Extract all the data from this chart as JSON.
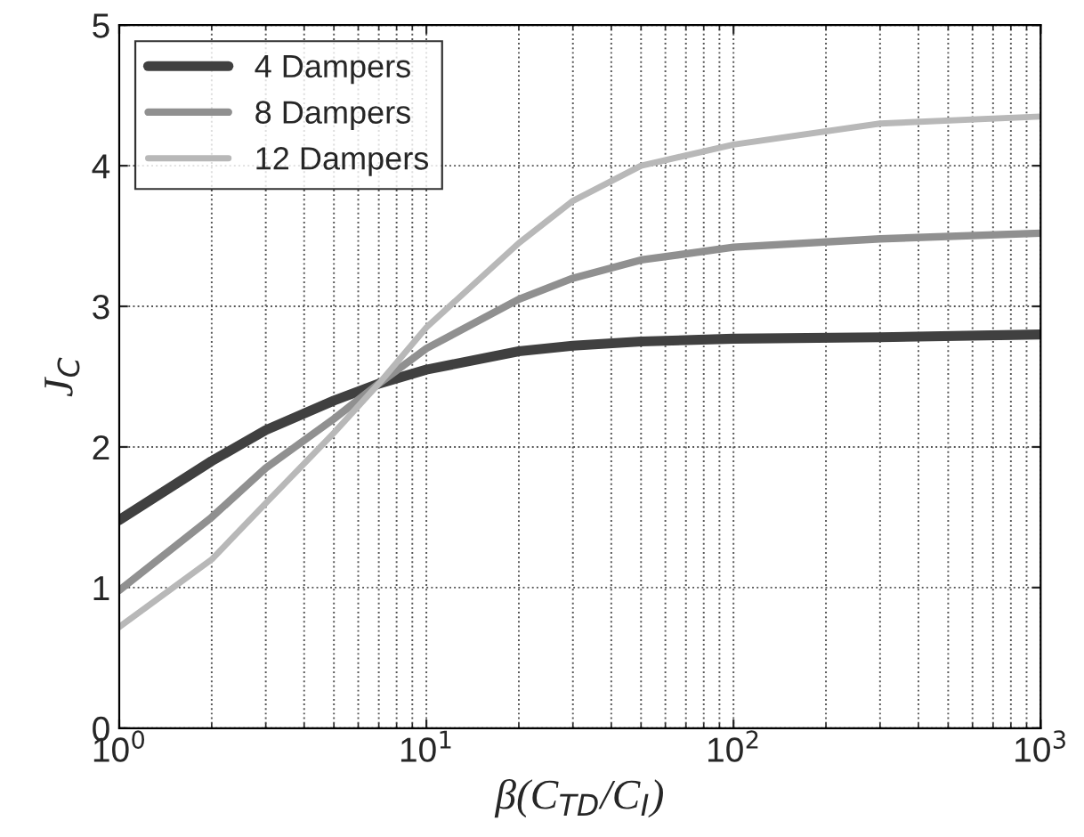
{
  "chart_data": {
    "type": "line",
    "xlabel": "β(C$_{TD}$/C$_{I}$)",
    "ylabel": "J$_{C}$",
    "log": "x",
    "x": [
      1,
      2,
      3,
      5,
      7,
      10,
      20,
      30,
      50,
      100,
      300,
      1000
    ],
    "series": [
      {
        "name": "4 Dampers",
        "color": "#404040",
        "values": [
          1.48,
          1.9,
          2.12,
          2.33,
          2.45,
          2.55,
          2.68,
          2.72,
          2.75,
          2.77,
          2.78,
          2.8
        ]
      },
      {
        "name": "8 Dampers",
        "color": "#909090",
        "values": [
          0.98,
          1.5,
          1.85,
          2.2,
          2.45,
          2.7,
          3.05,
          3.2,
          3.33,
          3.42,
          3.48,
          3.52
        ]
      },
      {
        "name": "12 Dampers",
        "color": "#b8b8b8",
        "values": [
          0.72,
          1.2,
          1.6,
          2.1,
          2.45,
          2.85,
          3.45,
          3.75,
          4.0,
          4.15,
          4.3,
          4.35
        ]
      }
    ],
    "xlim": [
      1,
      1000
    ],
    "xticks": [
      {
        "value": 1,
        "label": "10$^{0}$"
      },
      {
        "value": 10,
        "label": "10$^{1}$"
      },
      {
        "value": 100,
        "label": "10$^{2}$"
      },
      {
        "value": 1000,
        "label": "10$^{3}$"
      }
    ],
    "ylim": [
      0,
      5
    ],
    "yticks": [
      0,
      1,
      2,
      3,
      4,
      5
    ],
    "grid": true,
    "legend": "top left",
    "line_style": "solid",
    "marker": "none"
  }
}
